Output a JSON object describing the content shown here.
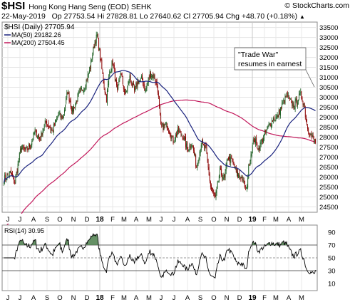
{
  "header": {
    "symbol": "$HSI",
    "name": "Hong Kong Hang Seng (EOD)",
    "exchange": "SEHK",
    "brand": "© StockCharts.com",
    "date": "22-May-2019",
    "quote": "Op 27753.54  Hi 27828.81  Lo 27640.62  Cl 27705.94  Chg +48.70 (+0.18%)",
    "chg_symbol": "▲"
  },
  "chart_data": [
    {
      "type": "candlestick",
      "title": "$HSI (Daily) 27705.94",
      "y_ticks": [
        24500,
        25000,
        25500,
        26000,
        26500,
        27000,
        27500,
        28000,
        28500,
        29000,
        29500,
        30000,
        30500,
        31000,
        31500,
        32000,
        32500,
        33000,
        33500
      ],
      "ylim": [
        24300,
        33700
      ],
      "x_ticks": [
        "J",
        "J",
        "A",
        "S",
        "O",
        "N",
        "D",
        "18",
        "F",
        "M",
        "A",
        "M",
        "J",
        "J",
        "A",
        "S",
        "O",
        "N",
        "D",
        "19",
        "F",
        "M",
        "A",
        "M"
      ],
      "year_ticks": [
        "18",
        "19"
      ],
      "close_anchors": [
        [
          0,
          25900
        ],
        [
          8,
          26200
        ],
        [
          14,
          25700
        ],
        [
          22,
          27500
        ],
        [
          28,
          27300
        ],
        [
          34,
          27600
        ],
        [
          40,
          28300
        ],
        [
          46,
          27900
        ],
        [
          54,
          28800
        ],
        [
          62,
          28300
        ],
        [
          70,
          29100
        ],
        [
          76,
          29000
        ],
        [
          82,
          30300
        ],
        [
          88,
          29300
        ],
        [
          96,
          30100
        ],
        [
          104,
          30600
        ],
        [
          110,
          31300
        ],
        [
          116,
          32600
        ],
        [
          120,
          33100
        ],
        [
          124,
          32000
        ],
        [
          128,
          30800
        ],
        [
          132,
          29900
        ],
        [
          136,
          31300
        ],
        [
          140,
          31800
        ],
        [
          146,
          30200
        ],
        [
          150,
          31300
        ],
        [
          156,
          30100
        ],
        [
          162,
          31000
        ],
        [
          168,
          30300
        ],
        [
          172,
          30800
        ],
        [
          178,
          30900
        ],
        [
          182,
          30300
        ],
        [
          188,
          31200
        ],
        [
          194,
          31000
        ],
        [
          198,
          30400
        ],
        [
          202,
          28500
        ],
        [
          210,
          28600
        ],
        [
          218,
          27800
        ],
        [
          224,
          28300
        ],
        [
          230,
          28100
        ],
        [
          236,
          27400
        ],
        [
          242,
          27700
        ],
        [
          248,
          26500
        ],
        [
          254,
          27700
        ],
        [
          260,
          27400
        ],
        [
          266,
          25500
        ],
        [
          272,
          24900
        ],
        [
          278,
          26300
        ],
        [
          284,
          25900
        ],
        [
          288,
          27000
        ],
        [
          294,
          26800
        ],
        [
          300,
          26100
        ],
        [
          306,
          26000
        ],
        [
          312,
          25300
        ],
        [
          316,
          26800
        ],
        [
          322,
          27900
        ],
        [
          328,
          27400
        ],
        [
          334,
          28000
        ],
        [
          340,
          28500
        ],
        [
          346,
          28900
        ],
        [
          352,
          29000
        ],
        [
          358,
          29600
        ],
        [
          364,
          30100
        ],
        [
          370,
          29700
        ],
        [
          374,
          29600
        ],
        [
          378,
          29900
        ],
        [
          382,
          30100
        ],
        [
          386,
          29700
        ],
        [
          390,
          28600
        ],
        [
          395,
          28100
        ],
        [
          398,
          27900
        ],
        [
          401,
          27706
        ]
      ],
      "series": [
        {
          "name": "$HSI (Daily)",
          "last": "27705.94"
        },
        {
          "name": "MA(50)",
          "value": "29182.26",
          "color": "#1a237e"
        },
        {
          "name": "MA(200)",
          "value": "27504.45",
          "color": "#c2185b"
        }
      ],
      "annotation": {
        "lines": [
          "\"Trade War\"",
          "resumes in earnest"
        ]
      },
      "candle_up_color": "#1b5e20",
      "candle_down_color": "#8b0000",
      "grid": true,
      "legend_position": "top-left"
    },
    {
      "type": "line",
      "title": "RSI(14) 30.95",
      "name": "RSI(14)",
      "last_value": "30.95",
      "ylim": [
        0,
        100
      ],
      "y_ticks": [
        10,
        30,
        50,
        70,
        90
      ],
      "levels": [
        30,
        50,
        70
      ],
      "overbought_fill": "#4a7c4a",
      "color": "#000000"
    }
  ]
}
